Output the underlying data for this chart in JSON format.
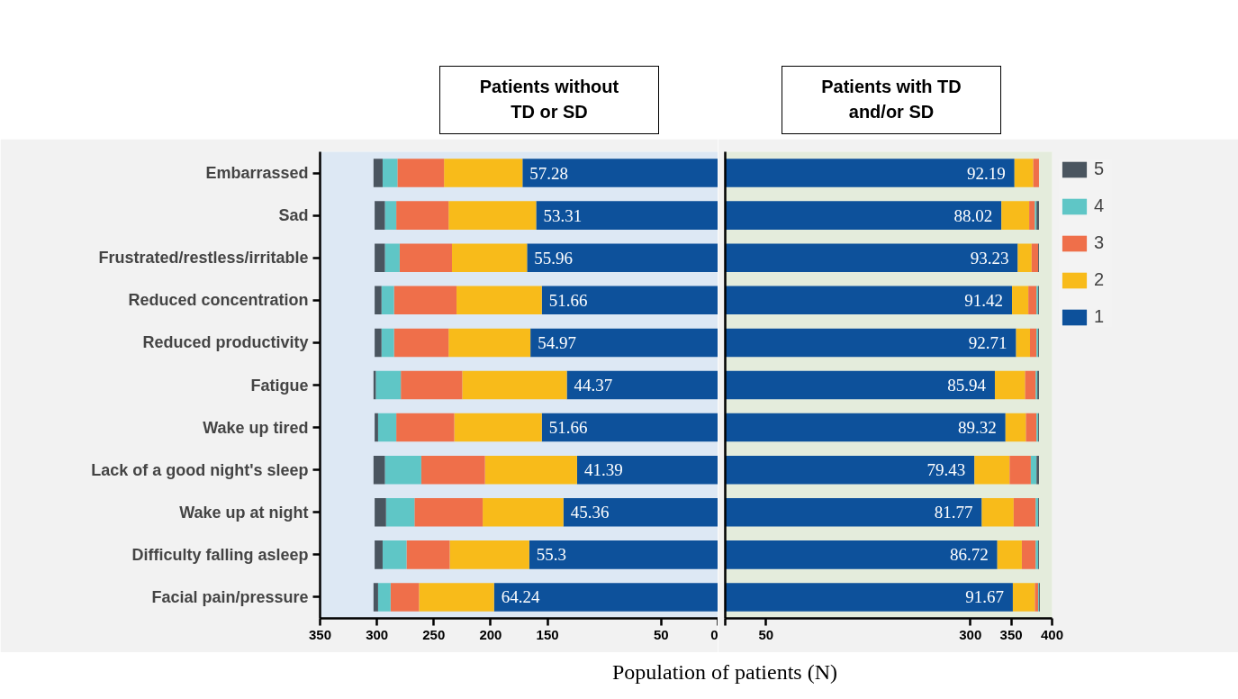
{
  "chart_data": [
    {
      "type": "bar",
      "orientation": "horizontal",
      "stacked": true,
      "title": "Patients without TD or SD",
      "xlabel": "Population of patients (N)",
      "categories": [
        "Embarrassed",
        "Sad",
        "Frustrated/restless/irritable",
        "Reduced concentration",
        "Reduced productivity",
        "Fatigue",
        "Wake up tired",
        "Lack of a good night's sleep",
        "Wake up at night",
        "Difficulty falling asleep",
        "Facial pain/pressure"
      ],
      "series": [
        {
          "color": "#0d519b",
          "values": [
            172,
            160,
            168,
            155,
            165,
            133,
            155,
            124,
            136,
            166,
            197
          ]
        },
        {
          "color": "#f8bb1a",
          "values": [
            69,
            77,
            66,
            75,
            72,
            92,
            77,
            81,
            71,
            70,
            66
          ]
        },
        {
          "color": "#ef6f4a",
          "values": [
            41,
            46,
            46,
            55,
            48,
            54,
            51,
            56,
            60,
            38,
            25
          ]
        },
        {
          "color": "#5fc6c6",
          "values": [
            13,
            10,
            13,
            11,
            11,
            22,
            16,
            32,
            25,
            21,
            11
          ]
        },
        {
          "color": "#4a555f",
          "values": [
            8,
            9,
            9,
            6,
            6,
            2,
            3,
            10,
            10,
            7,
            4
          ]
        }
      ],
      "xlim": [
        350,
        0
      ],
      "xticks": [
        350,
        300,
        250,
        200,
        150,
        50,
        0
      ],
      "annotations": [
        {
          "text": "57.28",
          "x": 172,
          "y": "Embarrassed"
        },
        {
          "text": "53.31",
          "x": 160,
          "y": "Sad"
        },
        {
          "text": "55.96",
          "x": 168,
          "y": "Frustrated/restless/irritable"
        },
        {
          "text": "51.66",
          "x": 155,
          "y": "Reduced concentration"
        },
        {
          "text": "54.97",
          "x": 165,
          "y": "Reduced productivity"
        },
        {
          "text": "44.37",
          "x": 133,
          "y": "Fatigue"
        },
        {
          "text": "51.66",
          "x": 155,
          "y": "Wake up tired"
        },
        {
          "text": "41.39",
          "x": 124,
          "y": "Lack of a good night's sleep"
        },
        {
          "text": "45.36",
          "x": 136,
          "y": "Wake up at night"
        },
        {
          "text": "55.3",
          "x": 166,
          "y": "Difficulty falling asleep"
        },
        {
          "text": "64.24",
          "x": 197,
          "y": "Facial pain/pressure"
        }
      ]
    },
    {
      "type": "bar",
      "orientation": "horizontal",
      "stacked": true,
      "title": "Patients with TD and/or SD",
      "categories": [
        "Embarrassed",
        "Sad",
        "Frustrated/restless/irritable",
        "Reduced concentration",
        "Reduced productivity",
        "Fatigue",
        "Wake up tired",
        "Lack of a good night's sleep",
        "Wake up at night",
        "Difficulty falling asleep",
        "Facial pain/pressure"
      ],
      "series": [
        {
          "name": "1",
          "color": "#0d519b",
          "values": [
            354,
            338,
            358,
            351,
            356,
            330,
            343,
            305,
            314,
            333,
            352
          ]
        },
        {
          "name": "2",
          "color": "#f8bb1a",
          "values": [
            23,
            34,
            17,
            20,
            17,
            37,
            25,
            43,
            39,
            30,
            27
          ]
        },
        {
          "name": "3",
          "color": "#ef6f4a",
          "values": [
            7,
            7,
            8,
            10,
            8,
            13,
            13,
            26,
            27,
            17,
            4
          ]
        },
        {
          "name": "4",
          "color": "#5fc6c6",
          "values": [
            0,
            2,
            0,
            2,
            2,
            2,
            2,
            7,
            3,
            3,
            1
          ]
        },
        {
          "name": "5",
          "color": "#4a555f",
          "values": [
            0,
            3,
            1,
            1,
            1,
            2,
            1,
            3,
            1,
            1,
            1
          ]
        }
      ],
      "xlim": [
        0,
        400
      ],
      "xticks": [
        {
          "value": 0,
          "label": null
        },
        50,
        300,
        350,
        400
      ],
      "tick_labels": "x",
      "legend": "right",
      "annotations": [
        {
          "text": "92.19",
          "x": 354,
          "y": "Embarrassed"
        },
        {
          "text": "88.02",
          "x": 338,
          "y": "Sad"
        },
        {
          "text": "93.23",
          "x": 358,
          "y": "Frustrated/restless/irritable"
        },
        {
          "text": "91.42",
          "x": 351,
          "y": "Reduced concentration"
        },
        {
          "text": "92.71",
          "x": 356,
          "y": "Reduced productivity"
        },
        {
          "text": "85.94",
          "x": 330,
          "y": "Fatigue"
        },
        {
          "text": "89.32",
          "x": 343,
          "y": "Wake up tired"
        },
        {
          "text": "79.43",
          "x": 305,
          "y": "Lack of a good night's sleep"
        },
        {
          "text": "81.77",
          "x": 314,
          "y": "Wake up at night"
        },
        {
          "text": "86.72",
          "x": 333,
          "y": "Difficulty falling asleep"
        },
        {
          "text": "91.67",
          "x": 352,
          "y": "Facial pain/pressure"
        }
      ]
    }
  ]
}
